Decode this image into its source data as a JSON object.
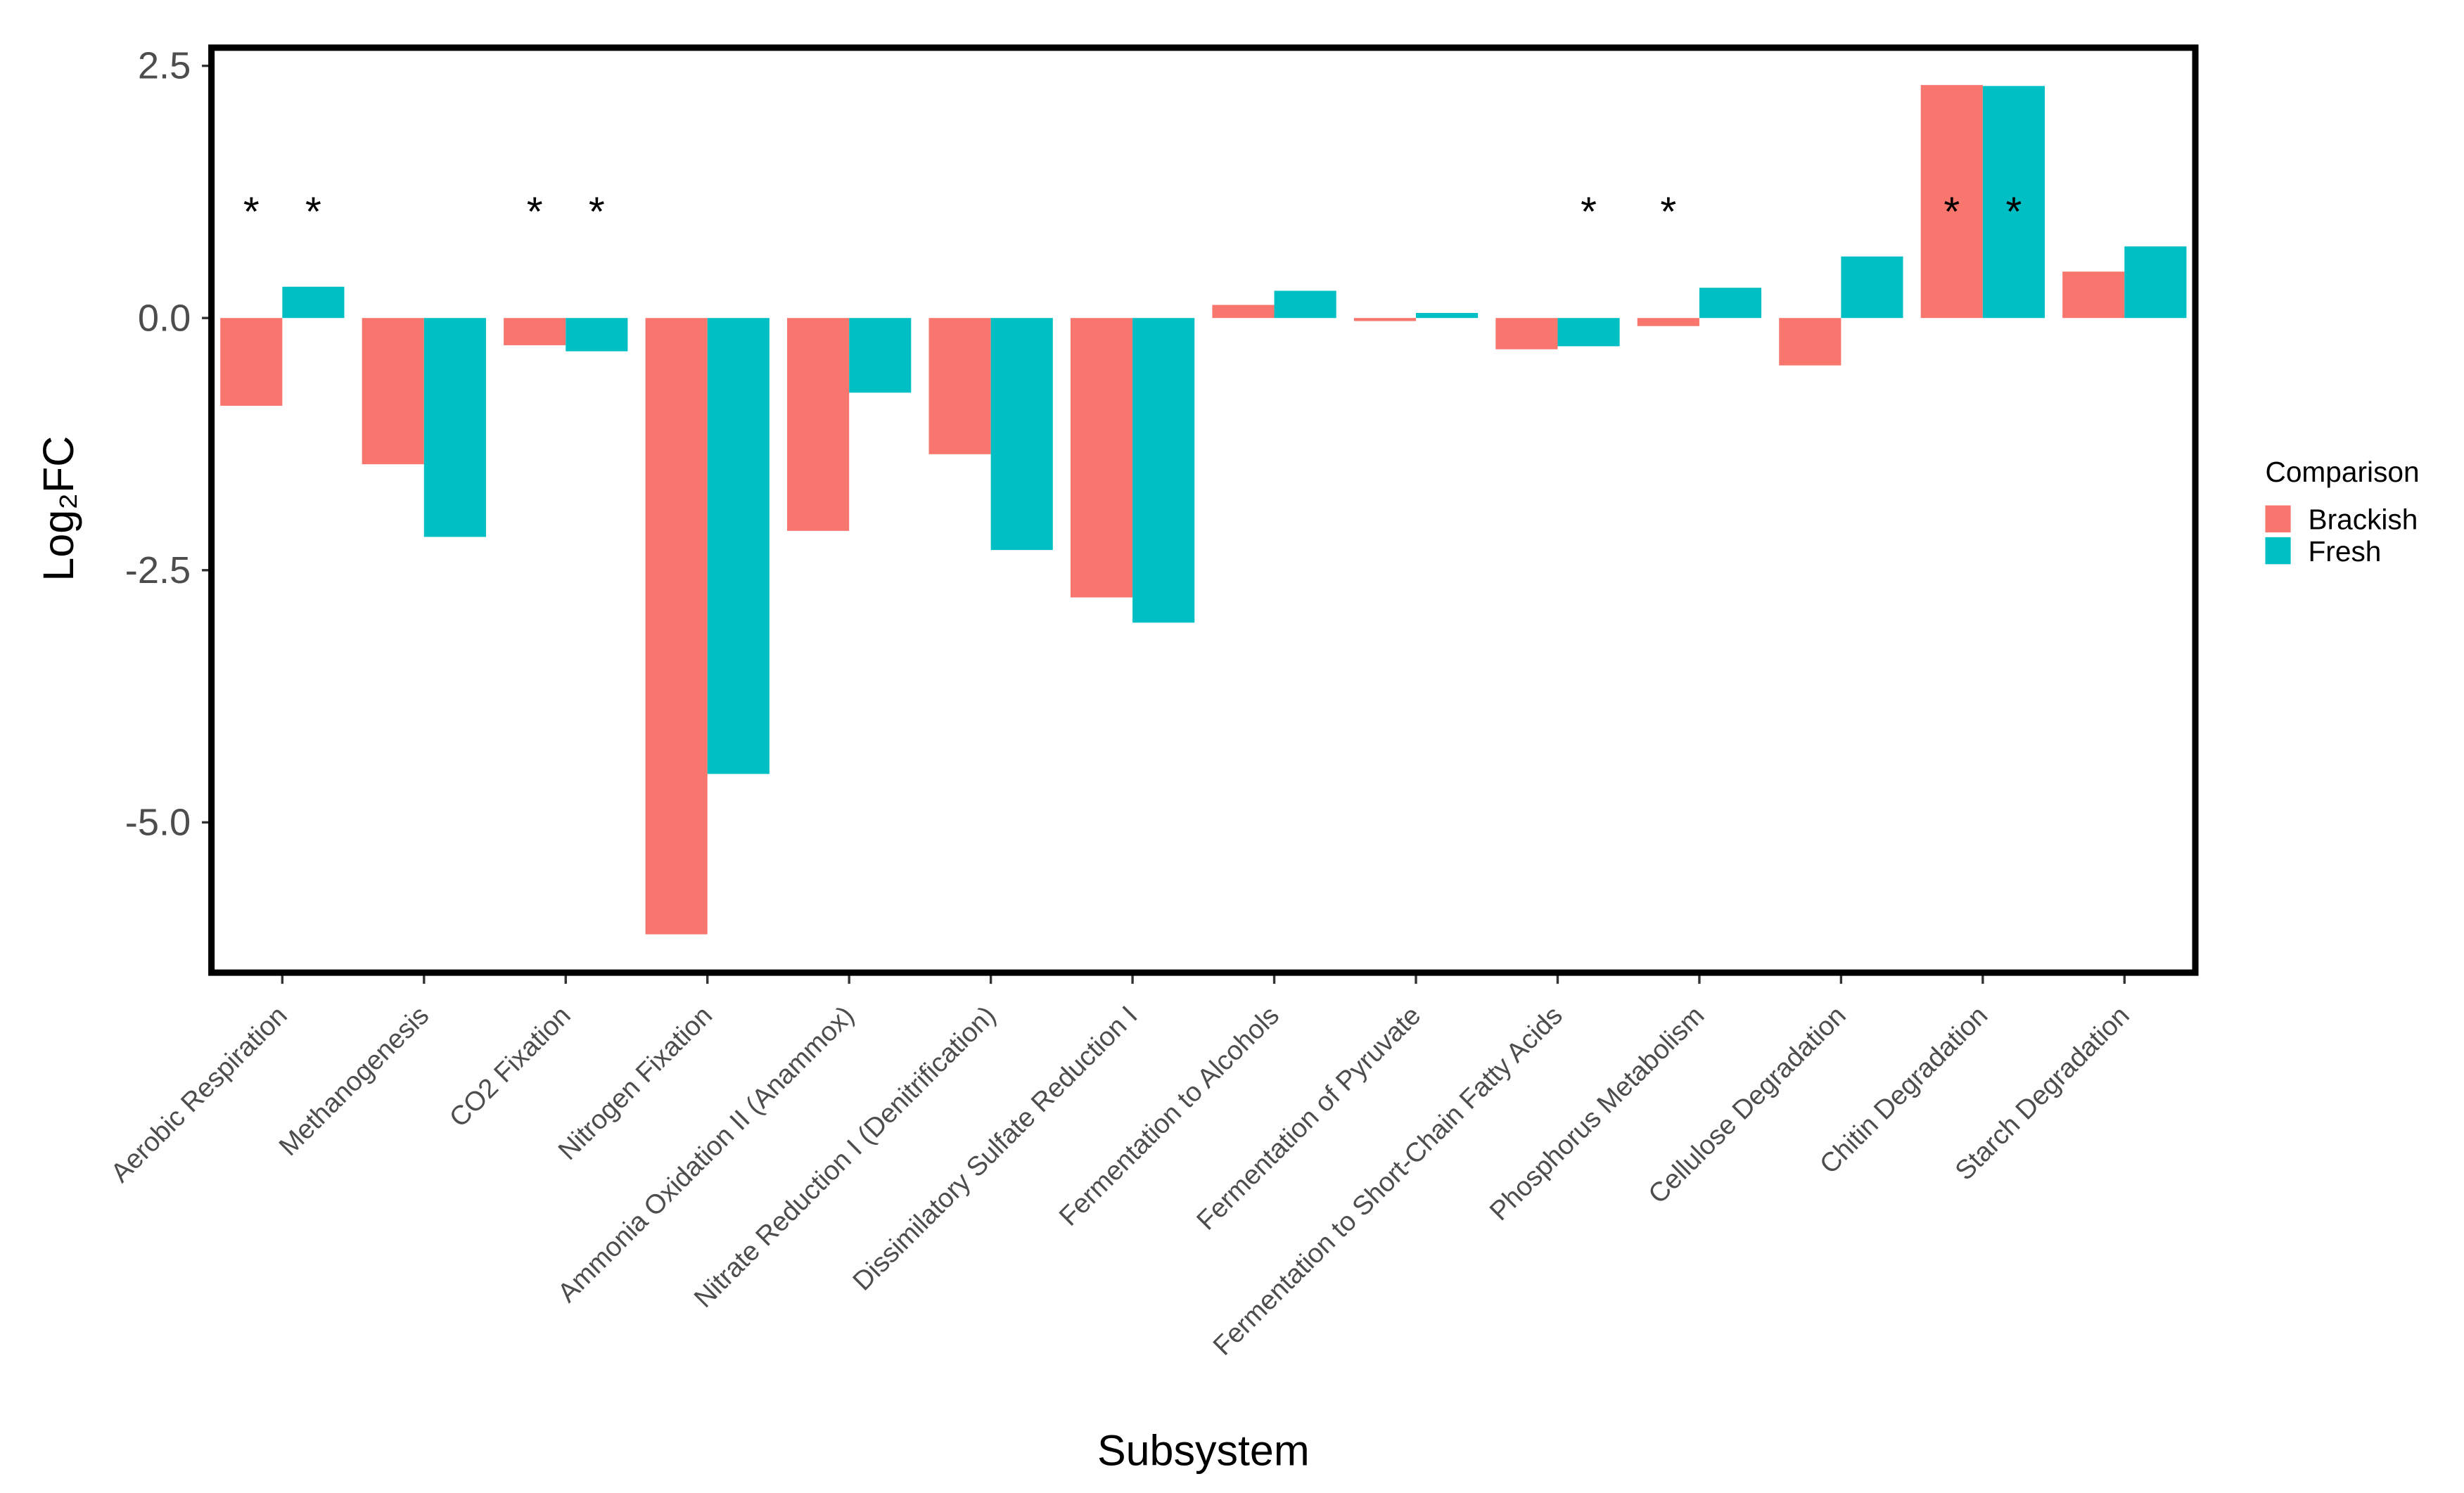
{
  "chart_data": {
    "type": "bar",
    "x_label": "Subsystem",
    "y_label": "Log₂FC",
    "legend_title": "Comparison",
    "legend_position": "right",
    "categories": [
      "Aerobic Respiration",
      "Methanogenesis",
      "CO2 Fixation",
      "Nitrogen Fixation",
      "Ammonia Oxidation II (Anammox)",
      "Nitrate Reduction I (Denitrification)",
      "Dissimilatory Sulfate Reduction I",
      "Fermentation to Alcohols",
      "Fermentation of Pyruvate",
      "Fermentation to Short-Chain Fatty Acids",
      "Phosphorus Metabolism",
      "Cellulose Degradation",
      "Chitin Degradation",
      "Starch Degradation"
    ],
    "series": [
      {
        "name": "Brackish",
        "color": "#F8766D",
        "values": [
          -0.87,
          -1.45,
          -0.27,
          -6.11,
          -2.11,
          -1.35,
          -2.77,
          0.13,
          -0.03,
          -0.31,
          -0.08,
          -0.47,
          2.31,
          0.46
        ],
        "significance": [
          "*",
          null,
          "*",
          null,
          null,
          null,
          null,
          null,
          null,
          null,
          "*",
          null,
          "*",
          null
        ]
      },
      {
        "name": "Fresh",
        "color": "#00BFC4",
        "values": [
          0.31,
          -2.17,
          -0.33,
          -4.52,
          -0.74,
          -2.3,
          -3.02,
          0.27,
          0.05,
          -0.28,
          0.3,
          0.61,
          2.3,
          0.71
        ],
        "significance": [
          "*",
          null,
          "*",
          null,
          null,
          null,
          null,
          null,
          null,
          "*",
          null,
          null,
          "*",
          null
        ]
      }
    ],
    "ylim": [
      -6.49,
      2.68
    ],
    "yticks": [
      2.5,
      {
        "value": 0,
        "label": "0.0"
      },
      -2.5,
      {
        "value": -5,
        "label": "-5.0"
      }
    ]
  }
}
